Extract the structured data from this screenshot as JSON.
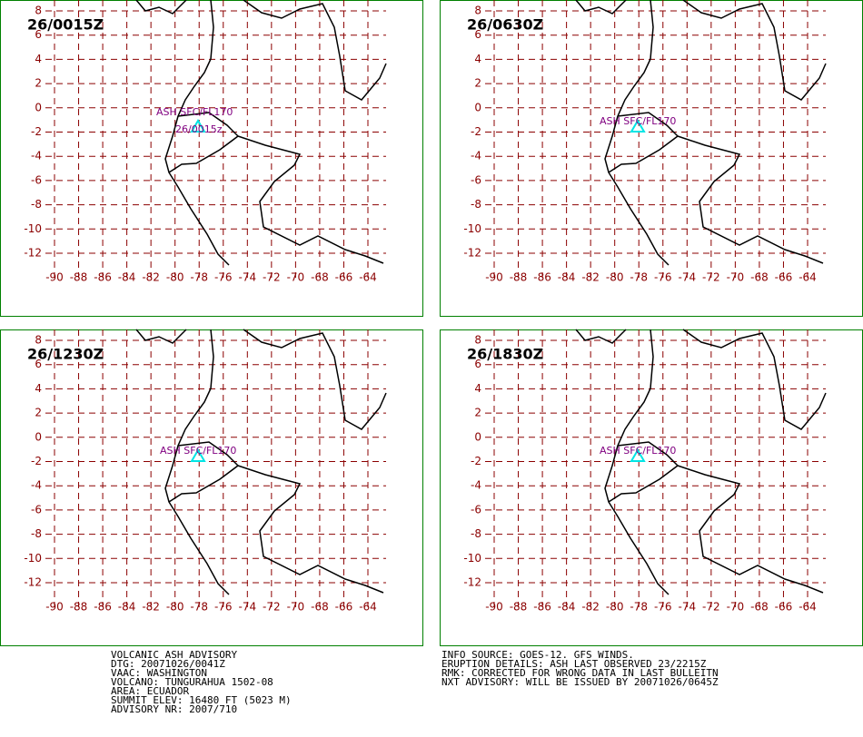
{
  "panels": [
    {
      "title": "26/0015Z",
      "labels": [
        "ASH SFC/FL170",
        "26/0015z"
      ]
    },
    {
      "title": "26/0630Z",
      "labels": [
        "ASH SFC/FL170"
      ]
    },
    {
      "title": "26/1230Z",
      "labels": [
        "ASH SFC/FL170"
      ]
    },
    {
      "title": "26/1830Z",
      "labels": [
        "ASH SFC/FL170"
      ]
    }
  ],
  "x_ticks": [
    -90,
    -88,
    -86,
    -84,
    -82,
    -80,
    -78,
    -76,
    -74,
    -72,
    -70,
    -68,
    -66,
    -64
  ],
  "y_ticks": [
    8,
    6,
    4,
    2,
    0,
    -2,
    -4,
    -6,
    -8,
    -10,
    -12
  ],
  "advisory": [
    "VOLCANIC ASH ADVISORY",
    "DTG: 20071026/0041Z",
    "VAAC: WASHINGTON",
    "VOLCANO: TUNGURAHUA 1502-08",
    "AREA: ECUADOR",
    "SUMMIT ELEV: 16480 FT (5023 M)",
    "ADVISORY NR: 2007/710"
  ],
  "info": [
    "INFO SOURCE: GOES-12. GFS WINDS.",
    "ERUPTION DETAILS: ASH LAST OBSERVED 23/2215Z",
    "RMK: CORRECTED FOR WRONG DATA IN LAST BULLEITN",
    "NXT ADVISORY: WILL BE ISSUED BY 20071026/0645Z"
  ]
}
